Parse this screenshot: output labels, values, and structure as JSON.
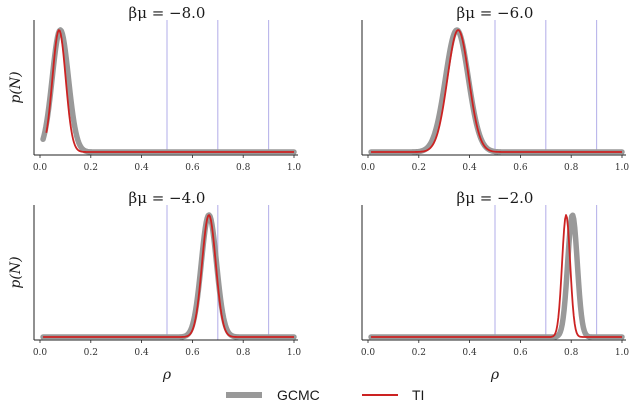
{
  "chart_data": [
    {
      "type": "line",
      "title": "βμ = −8.0",
      "xlabel": "",
      "ylabel": "p(N)",
      "xlim": [
        0,
        1.0
      ],
      "xticks": [
        "0.0",
        "0.2",
        "0.4",
        "0.6",
        "0.8",
        "1.0"
      ],
      "vlines": [
        0.5,
        0.7,
        0.9
      ],
      "series": [
        {
          "name": "GCMC",
          "color": "#999999",
          "peak": 0.08,
          "sigma": 0.032,
          "start": 0.012,
          "end": 1.0
        },
        {
          "name": "TI",
          "color": "#cc2222",
          "peak": 0.075,
          "sigma": 0.026,
          "start": 0.025,
          "end": 1.0
        }
      ]
    },
    {
      "type": "line",
      "title": "βμ = −6.0",
      "xlabel": "",
      "ylabel": "",
      "xlim": [
        0,
        1.0
      ],
      "xticks": [
        "0.0",
        "0.2",
        "0.4",
        "0.6",
        "0.8",
        "1.0"
      ],
      "vlines": [
        0.5,
        0.7,
        0.9
      ],
      "series": [
        {
          "name": "GCMC",
          "color": "#999999",
          "peak": 0.35,
          "sigma": 0.045,
          "start": 0.012,
          "end": 1.0
        },
        {
          "name": "TI",
          "color": "#cc2222",
          "peak": 0.355,
          "sigma": 0.042,
          "start": 0.012,
          "end": 1.0
        }
      ]
    },
    {
      "type": "line",
      "title": "βμ = −4.0",
      "xlabel": "ρ",
      "ylabel": "p(N)",
      "xlim": [
        0,
        1.0
      ],
      "xticks": [
        "0.0",
        "0.2",
        "0.4",
        "0.6",
        "0.8",
        "1.0"
      ],
      "vlines": [
        0.5,
        0.7,
        0.9
      ],
      "series": [
        {
          "name": "GCMC",
          "color": "#999999",
          "peak": 0.665,
          "sigma": 0.03,
          "start": 0.012,
          "end": 1.0
        },
        {
          "name": "TI",
          "color": "#cc2222",
          "peak": 0.665,
          "sigma": 0.027,
          "start": 0.012,
          "end": 1.0
        }
      ]
    },
    {
      "type": "line",
      "title": "βμ = −2.0",
      "xlabel": "ρ",
      "ylabel": "",
      "xlim": [
        0,
        1.0
      ],
      "xticks": [
        "0.0",
        "0.2",
        "0.4",
        "0.6",
        "0.8",
        "1.0"
      ],
      "vlines": [
        0.5,
        0.7,
        0.9
      ],
      "series": [
        {
          "name": "GCMC",
          "color": "#999999",
          "peak": 0.805,
          "sigma": 0.019,
          "start": 0.012,
          "end": 1.0
        },
        {
          "name": "TI",
          "color": "#cc2222",
          "peak": 0.78,
          "sigma": 0.016,
          "start": 0.012,
          "end": 1.0
        }
      ]
    }
  ],
  "legend": {
    "placement": "bottom-center",
    "items": [
      {
        "label": "GCMC",
        "color": "#999999"
      },
      {
        "label": "TI",
        "color": "#cc2222"
      }
    ]
  },
  "colors": {
    "vline": "#b9b4ea",
    "axis": "#222222"
  }
}
